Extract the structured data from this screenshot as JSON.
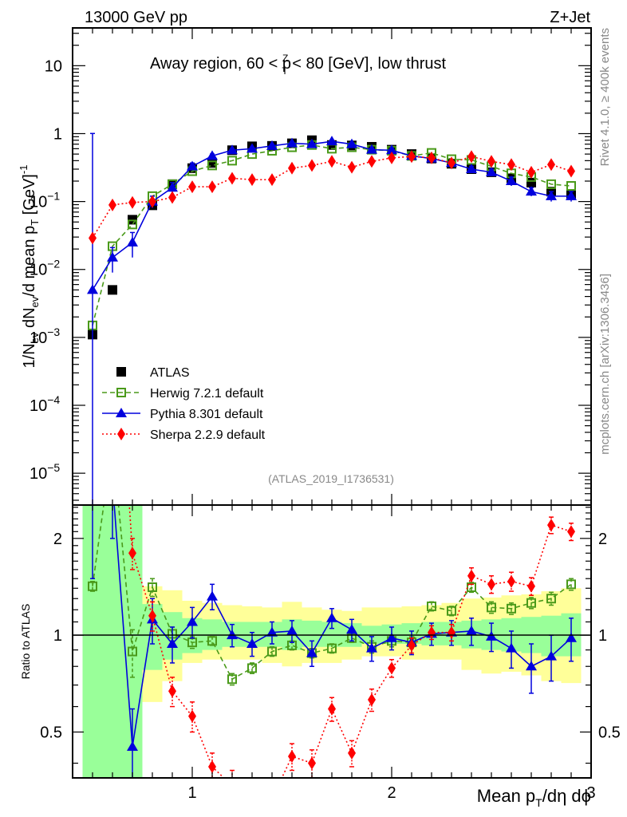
{
  "header": {
    "left": "13000 GeV pp",
    "right": "Z+Jet"
  },
  "side_labels": {
    "rivet": "Rivet 4.1.0, ≥ 400k events",
    "mcplots": "mcplots.cern.ch [arXiv:1306.3436]"
  },
  "chart_data": [
    {
      "type": "line",
      "panel": "main",
      "title": "Away region, 60 < p_T^Z < 80 [GeV], low thrust",
      "title_parts": {
        "pre": "Away region, 60 < p",
        "sup": "Z",
        "sub": "T",
        "post": " < 80 [GeV], low thrust"
      },
      "analysis_id": "(ATLAS_2019_I1736531)",
      "xlabel": "Mean p_T/dη dϕ",
      "xlabel_parts": {
        "pre": "Mean p",
        "sub": "T",
        "post": "/dη dϕ"
      },
      "ylabel": "1/N_ev dN_ev/d mean p_T [GeV]^-1",
      "ylabel_parts": {
        "a": "1/N",
        "a_sub": "ev",
        "b": " dN",
        "b_sub": "ev",
        "c": "/d mean p",
        "c_sub": "T",
        "d": " [GeV]",
        "d_sup": "-1"
      },
      "xscale": "linear",
      "yscale": "log",
      "xlim": [
        0.4,
        3.0
      ],
      "ylim": [
        3.4e-06,
        36
      ],
      "xticks": [
        "1",
        "2",
        "3"
      ],
      "yticks": [
        {
          "v": 10,
          "label": "10"
        },
        {
          "v": 1,
          "label": "1"
        },
        {
          "v": 0.1,
          "base": "10",
          "exp": "−1"
        },
        {
          "v": 0.01,
          "base": "10",
          "exp": "−2"
        },
        {
          "v": 0.001,
          "base": "10",
          "exp": "−3"
        },
        {
          "v": 0.0001,
          "base": "10",
          "exp": "−4"
        },
        {
          "v": 1e-05,
          "base": "10",
          "exp": "−5"
        }
      ],
      "legend_position": "middle-left",
      "x": [
        0.5,
        0.6,
        0.7,
        0.8,
        0.9,
        1.0,
        1.1,
        1.2,
        1.3,
        1.4,
        1.5,
        1.6,
        1.7,
        1.8,
        1.9,
        2.0,
        2.1,
        2.2,
        2.3,
        2.4,
        2.5,
        2.6,
        2.7,
        2.8,
        2.9
      ],
      "series": [
        {
          "name": "ATLAS",
          "color": "#000000",
          "marker": "square-filled",
          "line": "none",
          "values": [
            0.0011,
            0.005,
            0.054,
            0.088,
            0.18,
            0.31,
            0.37,
            0.57,
            0.65,
            0.66,
            0.72,
            0.8,
            0.68,
            0.67,
            0.64,
            0.58,
            0.5,
            0.43,
            0.36,
            0.3,
            0.27,
            0.22,
            0.19,
            0.14,
            0.125
          ]
        },
        {
          "name": "Herwig 7.2.1 default",
          "color": "#4a9a1a",
          "marker": "square-open",
          "line": "dashed",
          "values": [
            0.0015,
            0.022,
            0.046,
            0.12,
            0.18,
            0.28,
            0.34,
            0.4,
            0.5,
            0.56,
            0.63,
            0.68,
            0.6,
            0.63,
            0.58,
            0.56,
            0.47,
            0.52,
            0.42,
            0.41,
            0.33,
            0.26,
            0.23,
            0.18,
            0.17
          ]
        },
        {
          "name": "Pythia 8.301 default",
          "color": "#0000dd",
          "marker": "triangle-filled",
          "line": "solid",
          "values": [
            0.005,
            0.015,
            0.025,
            0.1,
            0.16,
            0.33,
            0.47,
            0.57,
            0.6,
            0.66,
            0.72,
            0.7,
            0.77,
            0.7,
            0.58,
            0.57,
            0.47,
            0.43,
            0.37,
            0.3,
            0.27,
            0.2,
            0.14,
            0.12,
            0.12
          ]
        },
        {
          "name": "Sherpa 2.2.9 default",
          "color": "#ff0000",
          "marker": "diamond-filled",
          "line": "dotted",
          "values": [
            0.029,
            0.089,
            0.097,
            0.1,
            0.115,
            0.165,
            0.165,
            0.22,
            0.21,
            0.21,
            0.31,
            0.34,
            0.39,
            0.32,
            0.39,
            0.44,
            0.46,
            0.44,
            0.37,
            0.46,
            0.39,
            0.35,
            0.27,
            0.35,
            0.28
          ]
        }
      ]
    },
    {
      "type": "line",
      "panel": "ratio",
      "ylabel": "Ratio to ATLAS",
      "yscale": "log",
      "xlim": [
        0.4,
        3.0
      ],
      "ylim": [
        0.36,
        2.54
      ],
      "yticks": [
        "2",
        "1",
        "0.5"
      ],
      "xticks": [
        "1",
        "2",
        "3"
      ],
      "x": [
        0.5,
        0.6,
        0.7,
        0.8,
        0.9,
        1.0,
        1.1,
        1.2,
        1.3,
        1.4,
        1.5,
        1.6,
        1.7,
        1.8,
        1.9,
        2.0,
        2.1,
        2.2,
        2.3,
        2.4,
        2.5,
        2.6,
        2.7,
        2.8,
        2.9
      ],
      "bands": {
        "x_edges": [
          0.45,
          0.55,
          0.65,
          0.75,
          0.85,
          0.95,
          1.05,
          1.15,
          1.25,
          1.35,
          1.45,
          1.55,
          1.65,
          1.75,
          1.85,
          1.95,
          2.05,
          2.15,
          2.25,
          2.35,
          2.45,
          2.55,
          2.65,
          2.75,
          2.85,
          2.95
        ],
        "green_color": "#99ff99",
        "yellow_color": "#ffff99",
        "green_lo": [
          0.36,
          0.36,
          0.36,
          0.78,
          0.84,
          0.88,
          0.9,
          0.92,
          0.92,
          0.92,
          0.9,
          0.92,
          0.92,
          0.92,
          0.94,
          0.94,
          0.94,
          0.93,
          0.93,
          0.91,
          0.9,
          0.89,
          0.88,
          0.86,
          0.86
        ],
        "green_hi": [
          2.54,
          2.54,
          2.54,
          1.25,
          1.18,
          1.13,
          1.12,
          1.1,
          1.1,
          1.1,
          1.12,
          1.11,
          1.1,
          1.09,
          1.07,
          1.08,
          1.09,
          1.1,
          1.1,
          1.11,
          1.12,
          1.13,
          1.14,
          1.15,
          1.17
        ],
        "yellow_lo": [
          0.36,
          0.36,
          0.4,
          0.62,
          0.72,
          0.82,
          0.84,
          0.84,
          0.84,
          0.82,
          0.8,
          0.82,
          0.82,
          0.84,
          0.86,
          0.86,
          0.84,
          0.84,
          0.84,
          0.78,
          0.76,
          0.77,
          0.75,
          0.72,
          0.71
        ],
        "yellow_hi": [
          2.54,
          2.54,
          1.62,
          1.42,
          1.38,
          1.28,
          1.26,
          1.24,
          1.23,
          1.22,
          1.27,
          1.22,
          1.2,
          1.19,
          1.22,
          1.22,
          1.23,
          1.24,
          1.26,
          1.3,
          1.31,
          1.33,
          1.34,
          1.37,
          1.4
        ]
      },
      "series": [
        {
          "name": "Herwig 7.2.1 default",
          "color": "#4a9a1a",
          "marker": "square-open",
          "line": "dashed",
          "values": [
            1.42,
            4.0,
            0.89,
            1.41,
            1.01,
            0.95,
            0.96,
            0.73,
            0.79,
            0.89,
            0.93,
            0.88,
            0.91,
            0.98,
            0.92,
            0.96,
            0.95,
            1.23,
            1.19,
            1.41,
            1.22,
            1.21,
            1.26,
            1.3,
            1.44
          ],
          "err": [
            0.05,
            0.1,
            0.15,
            0.09,
            0.05,
            0.04,
            0.03,
            0.03,
            0.03,
            0.03,
            0.03,
            0.03,
            0.03,
            0.03,
            0.04,
            0.04,
            0.04,
            0.04,
            0.04,
            0.05,
            0.05,
            0.05,
            0.05,
            0.06,
            0.06
          ]
        },
        {
          "name": "Pythia 8.301 default",
          "color": "#0000dd",
          "marker": "triangle-filled",
          "line": "solid",
          "values": [
            4.5,
            3.0,
            0.45,
            1.12,
            0.94,
            1.1,
            1.32,
            1.0,
            0.94,
            1.02,
            1.03,
            0.88,
            1.13,
            1.04,
            0.91,
            0.98,
            0.95,
            1.01,
            1.02,
            1.03,
            0.99,
            0.91,
            0.8,
            0.86,
            0.98
          ],
          "err": [
            3.0,
            1.0,
            0.14,
            0.18,
            0.12,
            0.12,
            0.12,
            0.08,
            0.08,
            0.08,
            0.08,
            0.08,
            0.08,
            0.08,
            0.08,
            0.08,
            0.08,
            0.08,
            0.09,
            0.1,
            0.1,
            0.12,
            0.14,
            0.14,
            0.15
          ]
        },
        {
          "name": "Sherpa 2.2.9 default",
          "color": "#ff0000",
          "marker": "diamond-filled",
          "line": "dotted",
          "values": [
            26.0,
            17.0,
            1.8,
            1.15,
            0.67,
            0.56,
            0.39,
            0.34,
            0.32,
            0.31,
            0.42,
            0.4,
            0.59,
            0.43,
            0.63,
            0.79,
            0.93,
            1.02,
            1.02,
            1.53,
            1.44,
            1.47,
            1.42,
            2.2,
            2.1
          ],
          "err": [
            2.0,
            1.5,
            0.2,
            0.12,
            0.07,
            0.06,
            0.04,
            0.04,
            0.03,
            0.03,
            0.04,
            0.04,
            0.05,
            0.04,
            0.05,
            0.05,
            0.05,
            0.05,
            0.06,
            0.09,
            0.09,
            0.1,
            0.09,
            0.13,
            0.13
          ]
        }
      ]
    }
  ]
}
